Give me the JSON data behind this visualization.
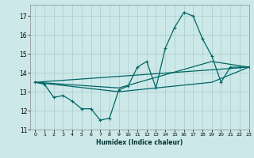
{
  "xlabel": "Humidex (Indice chaleur)",
  "background_color": "#cce8e8",
  "grid_color": "#aacccc",
  "line_color": "#006666",
  "xlim": [
    -0.5,
    23
  ],
  "ylim": [
    11,
    17.6
  ],
  "yticks": [
    11,
    12,
    13,
    14,
    15,
    16,
    17
  ],
  "xticks": [
    0,
    1,
    2,
    3,
    4,
    5,
    6,
    7,
    8,
    9,
    10,
    11,
    12,
    13,
    14,
    15,
    16,
    17,
    18,
    19,
    20,
    21,
    22,
    23
  ],
  "line1_x": [
    0,
    1,
    2,
    3,
    4,
    5,
    6,
    7,
    8,
    9,
    10,
    11,
    12,
    13,
    14,
    15,
    16,
    17,
    18,
    19,
    20,
    21,
    22,
    23
  ],
  "line1_y": [
    13.5,
    13.4,
    12.7,
    12.8,
    12.5,
    12.1,
    12.1,
    11.5,
    11.6,
    13.1,
    13.3,
    14.3,
    14.6,
    13.2,
    15.3,
    16.4,
    17.2,
    17.0,
    15.8,
    14.9,
    13.5,
    14.3,
    14.3,
    14.3
  ],
  "line2_x": [
    0,
    23
  ],
  "line2_y": [
    13.5,
    14.3
  ],
  "line3_x": [
    0,
    9,
    19,
    23
  ],
  "line3_y": [
    13.5,
    13.2,
    14.6,
    14.3
  ],
  "line4_x": [
    0,
    9,
    19,
    23
  ],
  "line4_y": [
    13.5,
    13.0,
    13.5,
    14.3
  ]
}
